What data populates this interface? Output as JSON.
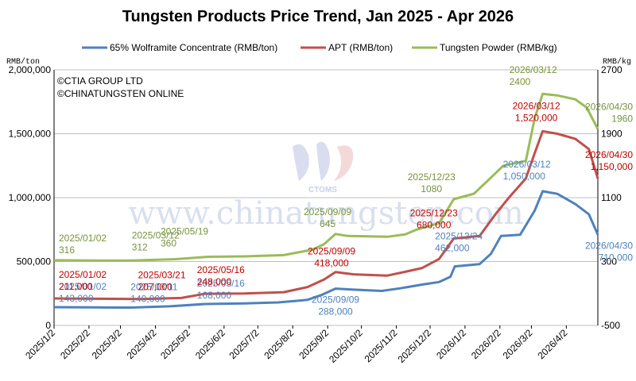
{
  "chart_data": {
    "type": "line",
    "title": "Tungsten Products Price Trend, Jan 2025 - Apr 2026",
    "left_unit": "RMB/ton",
    "right_unit": "RMB/kg",
    "credits": [
      "©CTIA GROUP LTD",
      "©CHINATUNGSTEN ONLINE"
    ],
    "watermark": "www.chinatungsten.com",
    "watermark_logo_text": "CTOMS",
    "left_axis": {
      "min": 0,
      "max": 2000000,
      "ticks": [
        "0",
        "500,000",
        "1,000,000",
        "1,500,000",
        "2,000,000"
      ]
    },
    "right_axis": {
      "min": -500,
      "max": 2700,
      "ticks": [
        "-500",
        "300",
        "1100",
        "1900",
        "2700"
      ]
    },
    "x_ticks": [
      "2025/1/2",
      "2025/2/2",
      "2025/3/2",
      "2025/4/2",
      "2025/5/2",
      "2025/6/2",
      "2025/7/2",
      "2025/8/2",
      "2025/9/2",
      "2025/10/2",
      "2025/11/2",
      "2025/12/2",
      "2026/1/2",
      "2026/2/2",
      "2026/3/2",
      "2026/4/2"
    ],
    "grid": "horizontal",
    "legend_position": "top",
    "series": [
      {
        "name": "65% Wolframite Concentrate (RMB/ton)",
        "axis": "left",
        "color": "#4f81bd",
        "points": [
          [
            "2025/01/02",
            143000
          ],
          [
            "2025/02/10",
            141000
          ],
          [
            "2025/03/11",
            140000
          ],
          [
            "2025/04/15",
            150000
          ],
          [
            "2025/05/16",
            168000
          ],
          [
            "2025/06/20",
            172000
          ],
          [
            "2025/07/20",
            180000
          ],
          [
            "2025/08/15",
            200000
          ],
          [
            "2025/08/28",
            240000
          ],
          [
            "2025/09/09",
            288000
          ],
          [
            "2025/09/25",
            280000
          ],
          [
            "2025/10/20",
            270000
          ],
          [
            "2025/11/05",
            290000
          ],
          [
            "2025/11/25",
            320000
          ],
          [
            "2025/12/10",
            340000
          ],
          [
            "2025/12/20",
            380000
          ],
          [
            "2025/12/24",
            462000
          ],
          [
            "2026/01/15",
            480000
          ],
          [
            "2026/01/25",
            560000
          ],
          [
            "2026/02/03",
            700000
          ],
          [
            "2026/02/20",
            710000
          ],
          [
            "2026/03/05",
            900000
          ],
          [
            "2026/03/12",
            1050000
          ],
          [
            "2026/03/25",
            1030000
          ],
          [
            "2026/04/10",
            950000
          ],
          [
            "2026/04/22",
            870000
          ],
          [
            "2026/04/30",
            710000
          ]
        ]
      },
      {
        "name": "APT (RMB/ton)",
        "axis": "left",
        "color": "#c0504d",
        "points": [
          [
            "2025/01/02",
            211000
          ],
          [
            "2025/02/10",
            209000
          ],
          [
            "2025/03/21",
            207000
          ],
          [
            "2025/04/25",
            215000
          ],
          [
            "2025/05/16",
            248000
          ],
          [
            "2025/06/20",
            250000
          ],
          [
            "2025/07/25",
            260000
          ],
          [
            "2025/08/15",
            300000
          ],
          [
            "2025/08/30",
            360000
          ],
          [
            "2025/09/09",
            418000
          ],
          [
            "2025/09/25",
            400000
          ],
          [
            "2025/10/25",
            390000
          ],
          [
            "2025/11/10",
            420000
          ],
          [
            "2025/11/25",
            450000
          ],
          [
            "2025/12/10",
            520000
          ],
          [
            "2025/12/23",
            680000
          ],
          [
            "2026/01/15",
            700000
          ],
          [
            "2026/01/30",
            880000
          ],
          [
            "2026/02/10",
            1000000
          ],
          [
            "2026/02/25",
            1150000
          ],
          [
            "2026/03/05",
            1350000
          ],
          [
            "2026/03/12",
            1520000
          ],
          [
            "2026/03/25",
            1500000
          ],
          [
            "2026/04/10",
            1460000
          ],
          [
            "2026/04/22",
            1380000
          ],
          [
            "2026/04/30",
            1150000
          ]
        ]
      },
      {
        "name": "Tungsten Powder (RMB/kg)",
        "axis": "right",
        "color": "#9bbb59",
        "points": [
          [
            "2025/01/02",
            316
          ],
          [
            "2025/02/10",
            313
          ],
          [
            "2025/03/12",
            312
          ],
          [
            "2025/04/20",
            330
          ],
          [
            "2025/05/19",
            360
          ],
          [
            "2025/06/20",
            365
          ],
          [
            "2025/07/25",
            380
          ],
          [
            "2025/08/20",
            450
          ],
          [
            "2025/08/30",
            520
          ],
          [
            "2025/09/09",
            645
          ],
          [
            "2025/09/20",
            620
          ],
          [
            "2025/10/25",
            610
          ],
          [
            "2025/11/10",
            640
          ],
          [
            "2025/11/20",
            700
          ],
          [
            "2025/12/10",
            780
          ],
          [
            "2025/12/23",
            1080
          ],
          [
            "2026/01/10",
            1150
          ],
          [
            "2026/01/25",
            1350
          ],
          [
            "2026/02/05",
            1500
          ],
          [
            "2026/02/25",
            1560
          ],
          [
            "2026/03/05",
            2100
          ],
          [
            "2026/03/12",
            2400
          ],
          [
            "2026/03/25",
            2380
          ],
          [
            "2026/04/10",
            2330
          ],
          [
            "2026/04/20",
            2230
          ],
          [
            "2026/04/30",
            1960
          ]
        ]
      }
    ],
    "annotations": [
      {
        "series": 0,
        "date": "2025/01/02",
        "value": 143000,
        "lines": [
          "2025/01/02",
          "143,000"
        ],
        "color": "#4f81bd"
      },
      {
        "series": 0,
        "date": "2025/03/11",
        "value": 140000,
        "lines": [
          "2025/03/11",
          "140,000"
        ],
        "color": "#4f81bd"
      },
      {
        "series": 0,
        "date": "2025/05/16",
        "value": 168000,
        "lines": [
          "2025/05/16",
          "168,000"
        ],
        "color": "#4f81bd"
      },
      {
        "series": 0,
        "date": "2025/09/09",
        "value": 288000,
        "lines": [
          "2025/09/09",
          "288,000"
        ],
        "color": "#4f81bd"
      },
      {
        "series": 0,
        "date": "2025/12/24",
        "value": 462000,
        "lines": [
          "2025/12/24",
          "462,000"
        ],
        "color": "#4f81bd"
      },
      {
        "series": 0,
        "date": "2026/03/12",
        "value": 1050000,
        "lines": [
          "2026/03/12",
          "1,050,000"
        ],
        "color": "#4f81bd"
      },
      {
        "series": 0,
        "date": "2026/04/30",
        "value": 710000,
        "lines": [
          "2026/04/30",
          "710,000"
        ],
        "color": "#4f81bd"
      },
      {
        "series": 1,
        "date": "2025/01/02",
        "value": 211000,
        "lines": [
          "2025/01/02",
          "211,000"
        ],
        "color": "#c00000"
      },
      {
        "series": 1,
        "date": "2025/03/21",
        "value": 207000,
        "lines": [
          "2025/03/21",
          "207,000"
        ],
        "color": "#c00000"
      },
      {
        "series": 1,
        "date": "2025/05/16",
        "value": 248000,
        "lines": [
          "2025/05/16",
          "248,000"
        ],
        "color": "#c00000"
      },
      {
        "series": 1,
        "date": "2025/09/09",
        "value": 418000,
        "lines": [
          "2025/09/09",
          "418,000"
        ],
        "color": "#c00000"
      },
      {
        "series": 1,
        "date": "2025/12/23",
        "value": 680000,
        "lines": [
          "2025/12/23",
          "680,000"
        ],
        "color": "#c00000"
      },
      {
        "series": 1,
        "date": "2026/03/12",
        "value": 1520000,
        "lines": [
          "2026/03/12",
          "1,520,000"
        ],
        "color": "#c00000"
      },
      {
        "series": 1,
        "date": "2026/04/30",
        "value": 1150000,
        "lines": [
          "2026/04/30",
          "1,150,000"
        ],
        "color": "#c00000"
      },
      {
        "series": 2,
        "date": "2025/01/02",
        "value": 316,
        "lines": [
          "2025/01/02",
          "316"
        ],
        "color": "#77933c"
      },
      {
        "series": 2,
        "date": "2025/03/12",
        "value": 312,
        "lines": [
          "2025/03/12",
          "312"
        ],
        "color": "#77933c"
      },
      {
        "series": 2,
        "date": "2025/05/19",
        "value": 360,
        "lines": [
          "2025/05/19",
          "360"
        ],
        "color": "#77933c"
      },
      {
        "series": 2,
        "date": "2025/09/09",
        "value": 645,
        "lines": [
          "2025/09/09",
          "645"
        ],
        "color": "#77933c"
      },
      {
        "series": 2,
        "date": "2025/12/23",
        "value": 1080,
        "lines": [
          "2025/12/23",
          "1080"
        ],
        "color": "#77933c"
      },
      {
        "series": 2,
        "date": "2026/03/12",
        "value": 2400,
        "lines": [
          "2026/03/12",
          "2400"
        ],
        "color": "#77933c"
      },
      {
        "series": 2,
        "date": "2026/04/30",
        "value": 1960,
        "lines": [
          "2026/04/30",
          "1960"
        ],
        "color": "#77933c"
      }
    ]
  }
}
